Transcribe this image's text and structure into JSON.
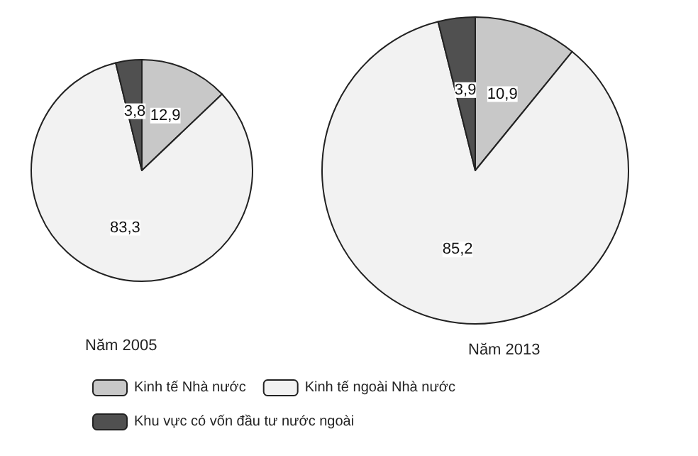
{
  "chart_data": {
    "type": "pie",
    "categories": [
      "Kinh tế Nhà nước",
      "Kinh tế ngoài Nhà nước",
      "Khu vực có vốn đầu tư nước ngoài"
    ],
    "colors": [
      "#c8c8c8",
      "#f2f2f2",
      "#505050"
    ],
    "legend": "bottom",
    "series": [
      {
        "name": "Năm 2005",
        "values": [
          12.9,
          83.3,
          3.8
        ],
        "value_labels": [
          "12,9",
          "83,3",
          "3,8"
        ]
      },
      {
        "name": "Năm 2013",
        "values": [
          10.9,
          85.2,
          3.9
        ],
        "value_labels": [
          "10,9",
          "85,2",
          "3,9"
        ]
      }
    ]
  }
}
